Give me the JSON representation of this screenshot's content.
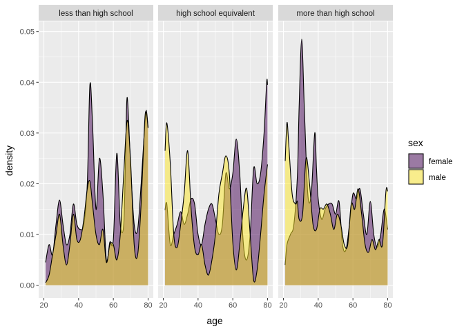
{
  "chart_data": {
    "type": "area",
    "xlabel": "age",
    "ylabel": "density",
    "xlim": [
      20,
      80
    ],
    "ylim": [
      0,
      0.05
    ],
    "x_ticks": [
      20,
      40,
      60,
      80
    ],
    "y_ticks": [
      0.0,
      0.01,
      0.02,
      0.03,
      0.04,
      0.05
    ],
    "y_tick_labels": [
      "0.00",
      "0.01",
      "0.02",
      "0.03",
      "0.04",
      "0.05"
    ],
    "grid": true,
    "legend": {
      "title": "sex",
      "position": "right",
      "entries": [
        {
          "label": "female",
          "color": "#7b5a85"
        },
        {
          "label": "male",
          "color": "#f5e26b"
        }
      ]
    },
    "colors": {
      "female": "#440154",
      "male": "#fde725",
      "panel_background": "#ebebeb",
      "strip_background": "#d9d9d9",
      "grid": "#ffffff"
    },
    "fill_alpha": 0.5,
    "panels": [
      {
        "label": "less than high school",
        "series": [
          {
            "name": "female",
            "points": [
              [
                21,
                0.0045
              ],
              [
                23,
                0.008
              ],
              [
                25,
                0.006
              ],
              [
                27,
                0.012
              ],
              [
                29,
                0.0168
              ],
              [
                31,
                0.012
              ],
              [
                33,
                0.008
              ],
              [
                35,
                0.01
              ],
              [
                37,
                0.016
              ],
              [
                39,
                0.012
              ],
              [
                41,
                0.011
              ],
              [
                43,
                0.012
              ],
              [
                45,
                0.02
              ],
              [
                46.5,
                0.0395
              ],
              [
                48,
                0.032
              ],
              [
                50,
                0.015
              ],
              [
                52,
                0.025
              ],
              [
                54,
                0.018
              ],
              [
                56,
                0.005
              ],
              [
                58,
                0.0085
              ],
              [
                60,
                0.009
              ],
              [
                62,
                0.026
              ],
              [
                64,
                0.012
              ],
              [
                66,
                0.012
              ],
              [
                67,
                0.025
              ],
              [
                68,
                0.037
              ],
              [
                70,
                0.023
              ],
              [
                72,
                0.012
              ],
              [
                74,
                0.011
              ],
              [
                76,
                0.02
              ],
              [
                78,
                0.031
              ],
              [
                79,
                0.0345
              ],
              [
                80,
                0.031
              ]
            ]
          },
          {
            "name": "male",
            "points": [
              [
                21,
                0.0005
              ],
              [
                23,
                0.002
              ],
              [
                25,
                0.006
              ],
              [
                27,
                0.01
              ],
              [
                29,
                0.014
              ],
              [
                31,
                0.008
              ],
              [
                33,
                0.004
              ],
              [
                35,
                0.008
              ],
              [
                37,
                0.014
              ],
              [
                39,
                0.009
              ],
              [
                41,
                0.009
              ],
              [
                43,
                0.013
              ],
              [
                45,
                0.019
              ],
              [
                46.5,
                0.0205
              ],
              [
                48,
                0.016
              ],
              [
                50,
                0.01
              ],
              [
                52,
                0.008
              ],
              [
                54,
                0.011
              ],
              [
                56,
                0.0045
              ],
              [
                58,
                0.008
              ],
              [
                60,
                0.008
              ],
              [
                62,
                0.005
              ],
              [
                64,
                0.01
              ],
              [
                66,
                0.022
              ],
              [
                68,
                0.0325
              ],
              [
                70,
                0.024
              ],
              [
                72,
                0.008
              ],
              [
                74,
                0.006
              ],
              [
                76,
                0.016
              ],
              [
                78,
                0.032
              ],
              [
                79,
                0.034
              ],
              [
                80,
                0.031
              ]
            ]
          }
        ]
      },
      {
        "label": "high school equivalent",
        "series": [
          {
            "name": "female",
            "points": [
              [
                21,
                0.0148
              ],
              [
                22,
                0.016
              ],
              [
                24,
                0.008
              ],
              [
                26,
                0.01
              ],
              [
                28,
                0.012
              ],
              [
                30,
                0.0145
              ],
              [
                32,
                0.012
              ],
              [
                34,
                0.014
              ],
              [
                36,
                0.017
              ],
              [
                38,
                0.016
              ],
              [
                40,
                0.01
              ],
              [
                42,
                0.008
              ],
              [
                44,
                0.012
              ],
              [
                46,
                0.015
              ],
              [
                48,
                0.016
              ],
              [
                50,
                0.013
              ],
              [
                52,
                0.01
              ],
              [
                54,
                0.012
              ],
              [
                56,
                0.022
              ],
              [
                58,
                0.019
              ],
              [
                60,
                0.022
              ],
              [
                62,
                0.0288
              ],
              [
                64,
                0.022
              ],
              [
                66,
                0.0085
              ],
              [
                68,
                0.005
              ],
              [
                70,
                0.01
              ],
              [
                72,
                0.023
              ],
              [
                74,
                0.02
              ],
              [
                76,
                0.022
              ],
              [
                78,
                0.03
              ],
              [
                79.5,
                0.04
              ],
              [
                80,
                0.0395
              ]
            ]
          },
          {
            "name": "male",
            "points": [
              [
                21,
                0.0265
              ],
              [
                22,
                0.032
              ],
              [
                24,
                0.024
              ],
              [
                26,
                0.01
              ],
              [
                28,
                0.0075
              ],
              [
                30,
                0.012
              ],
              [
                32,
                0.018
              ],
              [
                34,
                0.0265
              ],
              [
                36,
                0.015
              ],
              [
                38,
                0.0075
              ],
              [
                40,
                0.006
              ],
              [
                42,
                0.008
              ],
              [
                44,
                0.004
              ],
              [
                46,
                0.002
              ],
              [
                48,
                0.005
              ],
              [
                50,
                0.01
              ],
              [
                52,
                0.018
              ],
              [
                54,
                0.022
              ],
              [
                56,
                0.0255
              ],
              [
                58,
                0.022
              ],
              [
                60,
                0.0085
              ],
              [
                62,
                0.003
              ],
              [
                64,
                0.008
              ],
              [
                66,
                0.015
              ],
              [
                68,
                0.019
              ],
              [
                70,
                0.01
              ],
              [
                72,
                0.001
              ],
              [
                74,
                0.003
              ],
              [
                76,
                0.01
              ],
              [
                78,
                0.018
              ],
              [
                80,
                0.0238
              ]
            ]
          }
        ]
      },
      {
        "label": "more than high school",
        "series": [
          {
            "name": "female",
            "points": [
              [
                21,
                0.004
              ],
              [
                22,
                0.008
              ],
              [
                24,
                0.01
              ],
              [
                26,
                0.012
              ],
              [
                28,
                0.0215
              ],
              [
                29,
                0.035
              ],
              [
                30.5,
                0.0485
              ],
              [
                32,
                0.035
              ],
              [
                34,
                0.018
              ],
              [
                36,
                0.018
              ],
              [
                38,
                0.03
              ],
              [
                39,
                0.023
              ],
              [
                40,
                0.017
              ],
              [
                42,
                0.013
              ],
              [
                44,
                0.015
              ],
              [
                46,
                0.016
              ],
              [
                48,
                0.016
              ],
              [
                50,
                0.014
              ],
              [
                52,
                0.0165
              ],
              [
                54,
                0.008
              ],
              [
                56,
                0.007
              ],
              [
                58,
                0.012
              ],
              [
                60,
                0.018
              ],
              [
                62,
                0.017
              ],
              [
                64,
                0.019
              ],
              [
                66,
                0.014
              ],
              [
                68,
                0.01
              ],
              [
                70,
                0.0165
              ],
              [
                72,
                0.01
              ],
              [
                74,
                0.0075
              ],
              [
                76,
                0.01
              ],
              [
                78,
                0.015
              ],
              [
                80,
                0.011
              ]
            ]
          },
          {
            "name": "male",
            "points": [
              [
                21,
                0.0245
              ],
              [
                22,
                0.032
              ],
              [
                23,
                0.028
              ],
              [
                25,
                0.018
              ],
              [
                27,
                0.016
              ],
              [
                28,
                0.0165
              ],
              [
                29,
                0.013
              ],
              [
                31,
                0.014
              ],
              [
                33,
                0.025
              ],
              [
                35,
                0.02
              ],
              [
                37,
                0.012
              ],
              [
                39,
                0.011
              ],
              [
                41,
                0.015
              ],
              [
                43,
                0.015
              ],
              [
                45,
                0.016
              ],
              [
                47,
                0.014
              ],
              [
                49,
                0.011
              ],
              [
                51,
                0.014
              ],
              [
                53,
                0.012
              ],
              [
                55,
                0.008
              ],
              [
                57,
                0.008
              ],
              [
                59,
                0.016
              ],
              [
                61,
                0.015
              ],
              [
                63,
                0.019
              ],
              [
                65,
                0.014
              ],
              [
                67,
                0.008
              ],
              [
                69,
                0.0065
              ],
              [
                71,
                0.009
              ],
              [
                73,
                0.007
              ],
              [
                75,
                0.009
              ],
              [
                77,
                0.008
              ],
              [
                79,
                0.0185
              ],
              [
                80,
                0.0185
              ]
            ]
          }
        ]
      }
    ]
  }
}
